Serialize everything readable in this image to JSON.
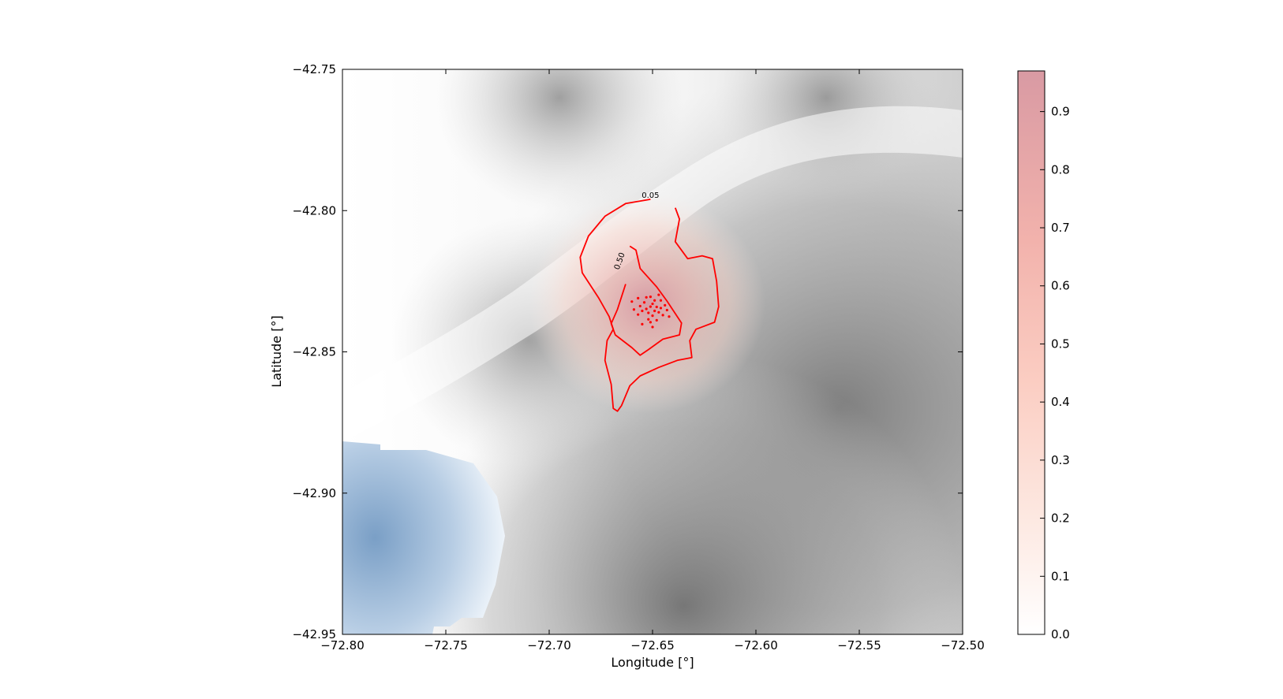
{
  "chart_data": {
    "type": "heatmap",
    "title": "",
    "xlabel": "Longitude [°]",
    "ylabel": "Latitude [°]",
    "xlim": [
      -72.8,
      -72.5
    ],
    "ylim": [
      -42.95,
      -42.75
    ],
    "x_ticks": [
      -72.8,
      -72.75,
      -72.7,
      -72.65,
      -72.6,
      -72.55,
      -72.5
    ],
    "x_tick_labels": [
      "−72.80",
      "−72.75",
      "−72.70",
      "−72.65",
      "−72.60",
      "−72.55",
      "−72.50"
    ],
    "y_ticks": [
      -42.75,
      -42.8,
      -42.85,
      -42.9,
      -42.95
    ],
    "y_tick_labels": [
      "−42.75",
      "−42.80",
      "−42.85",
      "−42.90",
      "−42.95"
    ],
    "grid": false,
    "background": "shaded relief (grayscale terrain), water in blue at lower left",
    "colorbar": {
      "range": [
        0.0,
        0.97
      ],
      "ticks": [
        0.0,
        0.1,
        0.2,
        0.3,
        0.4,
        0.5,
        0.6,
        0.7,
        0.8,
        0.9
      ],
      "tick_labels": [
        "0.0",
        "0.1",
        "0.2",
        "0.3",
        "0.4",
        "0.5",
        "0.6",
        "0.7",
        "0.8",
        "0.9"
      ],
      "colors": [
        "#ffffff",
        "#fce4dc",
        "#f7b3a4",
        "#e98f8c",
        "#d8939e"
      ]
    },
    "contours": [
      {
        "level_label": "0.05",
        "color": "#ff0000",
        "points": [
          [
            -72.651,
            -42.796
          ],
          [
            -72.663,
            -42.7975
          ],
          [
            -72.673,
            -42.802
          ],
          [
            -72.681,
            -42.809
          ],
          [
            -72.685,
            -42.8165
          ],
          [
            -72.684,
            -42.822
          ],
          [
            -72.676,
            -42.831
          ],
          [
            -72.671,
            -42.8375
          ],
          [
            -72.669,
            -42.842
          ],
          [
            -72.672,
            -42.846
          ],
          [
            -72.673,
            -42.853
          ],
          [
            -72.67,
            -42.8615
          ],
          [
            -72.669,
            -42.87
          ],
          [
            -72.667,
            -42.871
          ],
          [
            -72.665,
            -42.869
          ],
          [
            -72.661,
            -42.862
          ],
          [
            -72.656,
            -42.8585
          ],
          [
            -72.647,
            -42.8555
          ],
          [
            -72.638,
            -42.853
          ],
          [
            -72.631,
            -42.852
          ],
          [
            -72.632,
            -42.846
          ],
          [
            -72.629,
            -42.842
          ],
          [
            -72.62,
            -42.8395
          ],
          [
            -72.618,
            -42.834
          ],
          [
            -72.619,
            -42.825
          ],
          [
            -72.621,
            -42.817
          ],
          [
            -72.626,
            -42.816
          ],
          [
            -72.633,
            -42.817
          ],
          [
            -72.639,
            -42.811
          ],
          [
            -72.637,
            -42.803
          ],
          [
            -72.639,
            -42.799
          ]
        ]
      },
      {
        "level_label": "0.50",
        "color": "#ff0000",
        "points": [
          [
            -72.661,
            -42.8126
          ],
          [
            -72.658,
            -42.814
          ],
          [
            -72.656,
            -42.8205
          ],
          [
            -72.648,
            -42.827
          ],
          [
            -72.643,
            -42.832
          ],
          [
            -72.636,
            -42.8398
          ],
          [
            -72.637,
            -42.844
          ],
          [
            -72.645,
            -42.8455
          ],
          [
            -72.652,
            -42.8492
          ],
          [
            -72.656,
            -42.8512
          ],
          [
            -72.66,
            -42.8485
          ],
          [
            -72.668,
            -42.844
          ],
          [
            -72.67,
            -42.84
          ],
          [
            -72.667,
            -42.835
          ],
          [
            -72.663,
            -42.826
          ]
        ]
      }
    ],
    "scatter": {
      "color": "#ff0000",
      "points": [
        [
          -72.651,
          -42.834
        ],
        [
          -72.649,
          -42.8355
        ],
        [
          -72.652,
          -42.8362
        ],
        [
          -72.65,
          -42.833
        ],
        [
          -72.653,
          -42.8348
        ],
        [
          -72.648,
          -42.8341
        ],
        [
          -72.655,
          -42.8355
        ],
        [
          -72.647,
          -42.836
        ],
        [
          -72.65,
          -42.8372
        ],
        [
          -72.654,
          -42.8325
        ],
        [
          -72.646,
          -42.8345
        ],
        [
          -72.652,
          -42.8385
        ],
        [
          -72.649,
          -42.8318
        ],
        [
          -72.656,
          -42.8338
        ],
        [
          -72.645,
          -42.837
        ],
        [
          -72.651,
          -42.8395
        ],
        [
          -72.657,
          -42.8368
        ],
        [
          -72.644,
          -42.8335
        ],
        [
          -72.653,
          -42.8307
        ],
        [
          -72.648,
          -42.8388
        ],
        [
          -72.659,
          -42.835
        ],
        [
          -72.643,
          -42.8352
        ],
        [
          -72.651,
          -42.8305
        ],
        [
          -72.655,
          -42.8402
        ],
        [
          -72.646,
          -42.8318
        ],
        [
          -72.66,
          -42.8322
        ],
        [
          -72.642,
          -42.8375
        ],
        [
          -72.65,
          -42.8412
        ],
        [
          -72.657,
          -42.831
        ],
        [
          -72.647,
          -42.8298
        ]
      ]
    }
  }
}
